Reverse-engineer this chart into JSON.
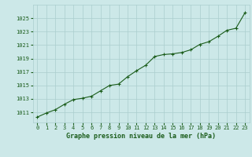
{
  "x": [
    0,
    1,
    2,
    3,
    4,
    5,
    6,
    7,
    8,
    9,
    10,
    11,
    12,
    13,
    14,
    15,
    16,
    17,
    18,
    19,
    20,
    21,
    22,
    23
  ],
  "y": [
    1010.3,
    1010.9,
    1011.4,
    1012.2,
    1012.9,
    1013.1,
    1013.4,
    1014.2,
    1015.0,
    1015.2,
    1016.3,
    1017.2,
    1018.0,
    1019.3,
    1019.6,
    1019.7,
    1019.9,
    1020.3,
    1021.1,
    1021.5,
    1022.3,
    1023.2,
    1023.5,
    1025.8
  ],
  "line_color": "#1a5c1a",
  "marker": "+",
  "bg_color": "#cce8e8",
  "grid_color": "#aacece",
  "xlabel": "Graphe pression niveau de la mer (hPa)",
  "xlabel_color": "#1a5c1a",
  "tick_color": "#1a5c1a",
  "ylim": [
    1009.5,
    1027.0
  ],
  "xlim": [
    -0.5,
    23.5
  ],
  "yticks": [
    1011,
    1013,
    1015,
    1017,
    1019,
    1021,
    1023,
    1025
  ],
  "xticks": [
    0,
    1,
    2,
    3,
    4,
    5,
    6,
    7,
    8,
    9,
    10,
    11,
    12,
    13,
    14,
    15,
    16,
    17,
    18,
    19,
    20,
    21,
    22,
    23
  ],
  "tick_fontsize": 5.0,
  "xlabel_fontsize": 6.0,
  "linewidth": 0.8,
  "markersize": 3.5,
  "markeredgewidth": 0.8
}
